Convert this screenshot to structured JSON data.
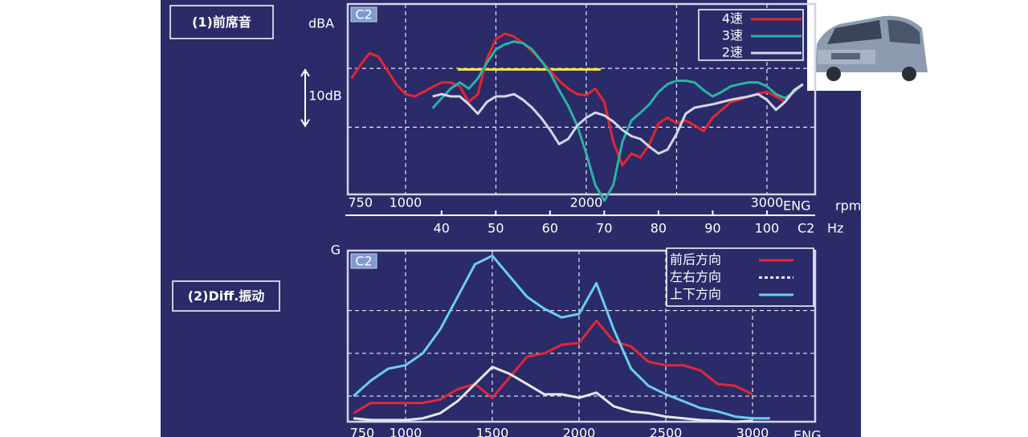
{
  "chart_data": [
    {
      "type": "line",
      "title": "(1)前席音",
      "plot_label": "C2",
      "y_label": "dBA",
      "x_label": "ENG",
      "x_unit": "rpm",
      "x": [
        700,
        750,
        800,
        850,
        900,
        950,
        1000,
        1050,
        1100,
        1150,
        1200,
        1250,
        1300,
        1350,
        1400,
        1450,
        1500,
        1550,
        1600,
        1650,
        1700,
        1750,
        1800,
        1850,
        1900,
        1950,
        2000,
        2050,
        2100,
        2150,
        2200,
        2250,
        2300,
        2350,
        2400,
        2450,
        2500,
        2550,
        2600,
        2650,
        2700,
        2750,
        2800,
        2850,
        2900,
        2950,
        3000,
        3050,
        3100,
        3150,
        3200
      ],
      "xlim": [
        680,
        3267
      ],
      "xticks": [
        750,
        1000,
        2000,
        3000
      ],
      "xgrid": [
        1000,
        1500,
        2000,
        2500,
        3000
      ],
      "x2_label": "C2",
      "x2_unit": "Hz",
      "x2lim": [
        22.7,
        108.9
      ],
      "x2ticks": [
        40,
        50,
        60,
        70,
        80,
        90,
        100
      ],
      "ylim": [
        0,
        34
      ],
      "ygrid": [
        12,
        22.5
      ],
      "scale_bar": {
        "label": "10dB",
        "value": 10
      },
      "reference_line": {
        "color": "#f2e33a",
        "x": [
          1289,
          2080
        ],
        "y": 22.3
      },
      "series": [
        {
          "name": "4速",
          "color": "#e3262f",
          "values": [
            20.7,
            23.1,
            25.2,
            24.6,
            22.1,
            19.6,
            17.9,
            17.5,
            18.3,
            19.2,
            20.0,
            20.0,
            19.3,
            16.5,
            17.9,
            24.2,
            27.7,
            28.7,
            28.2,
            27.0,
            25.6,
            23.9,
            22.1,
            20.3,
            18.9,
            17.9,
            17.7,
            18.9,
            16.5,
            9.4,
            5.2,
            7.3,
            6.6,
            9.0,
            12.7,
            13.7,
            12.7,
            13.2,
            12.3,
            11.3,
            13.7,
            15.1,
            16.5,
            16.9,
            17.5,
            18.0,
            18.3,
            17.5,
            16.5,
            18.3,
            19.7
          ]
        },
        {
          "name": "3速",
          "color": "#2bb3a3",
          "values": [
            null,
            null,
            null,
            null,
            null,
            null,
            null,
            null,
            null,
            15.4,
            17.2,
            18.9,
            20.0,
            18.9,
            20.7,
            23.5,
            25.9,
            26.8,
            27.3,
            27.0,
            25.9,
            23.9,
            21.7,
            18.6,
            15.8,
            12.3,
            7.3,
            1.7,
            -1.1,
            1.7,
            9.4,
            13.2,
            14.6,
            16.1,
            18.3,
            19.7,
            20.3,
            20.3,
            20.0,
            18.6,
            17.5,
            18.3,
            19.3,
            19.7,
            20.0,
            20.0,
            19.3,
            17.9,
            17.2,
            18.3,
            19.7
          ]
        },
        {
          "name": "2速",
          "color": "#d6d6ec",
          "values": [
            null,
            null,
            null,
            null,
            null,
            null,
            null,
            null,
            null,
            17.5,
            17.9,
            17.5,
            17.5,
            16.1,
            14.4,
            16.5,
            17.5,
            17.5,
            17.9,
            16.9,
            15.5,
            13.7,
            11.5,
            9.0,
            9.9,
            12.3,
            13.7,
            14.6,
            14.1,
            13.0,
            11.5,
            10.4,
            9.9,
            8.5,
            7.3,
            8.0,
            10.8,
            14.4,
            15.5,
            15.8,
            16.1,
            16.5,
            16.9,
            17.2,
            17.5,
            17.9,
            16.9,
            15.1,
            16.5,
            18.6,
            19.7
          ]
        }
      ]
    },
    {
      "type": "line",
      "title": "(2)Diff.振动",
      "plot_label": "C2",
      "y_label": "G",
      "x_label": "ENG",
      "x": [
        700,
        800,
        900,
        1000,
        1100,
        1200,
        1300,
        1400,
        1500,
        1600,
        1700,
        1800,
        1900,
        2000,
        2100,
        2200,
        2300,
        2400,
        2500,
        2600,
        2700,
        2800,
        2900,
        3000,
        3100
      ],
      "xlim": [
        667,
        3361
      ],
      "xticks": [
        750,
        1000,
        1500,
        2000,
        2500,
        3000
      ],
      "xgrid": [
        1000,
        1500,
        2000,
        2500,
        3000
      ],
      "ylim": [
        0,
        10
      ],
      "ygrid": [
        1.5,
        4,
        6.5
      ],
      "series": [
        {
          "name": "前后方向",
          "color": "#e0283a",
          "values": [
            0.5,
            1.1,
            1.1,
            1.1,
            1.1,
            1.3,
            1.9,
            2.2,
            1.4,
            2.6,
            3.8,
            4.0,
            4.5,
            4.6,
            5.9,
            4.7,
            4.4,
            3.5,
            3.3,
            3.3,
            3.0,
            2.2,
            2.1,
            1.6,
            null
          ]
        },
        {
          "name": "左右方向",
          "color": "#e6e6f0",
          "legend_dashed": true,
          "values": [
            0.2,
            0.1,
            0.1,
            0.1,
            0.2,
            0.5,
            1.2,
            2.2,
            3.2,
            2.8,
            2.2,
            1.6,
            1.6,
            1.4,
            1.7,
            0.9,
            0.6,
            0.5,
            0.3,
            0.2,
            0.1,
            0.05,
            0,
            0.05,
            null
          ]
        },
        {
          "name": "上下方向",
          "color": "#6cccf0",
          "values": [
            1.5,
            2.4,
            3.1,
            3.3,
            4.0,
            5.4,
            7.3,
            9.2,
            9.7,
            8.5,
            7.3,
            6.6,
            6.1,
            6.3,
            8.1,
            5.4,
            3.1,
            2.1,
            1.6,
            1.2,
            0.8,
            0.6,
            0.3,
            0.2,
            0.2
          ]
        }
      ]
    }
  ]
}
